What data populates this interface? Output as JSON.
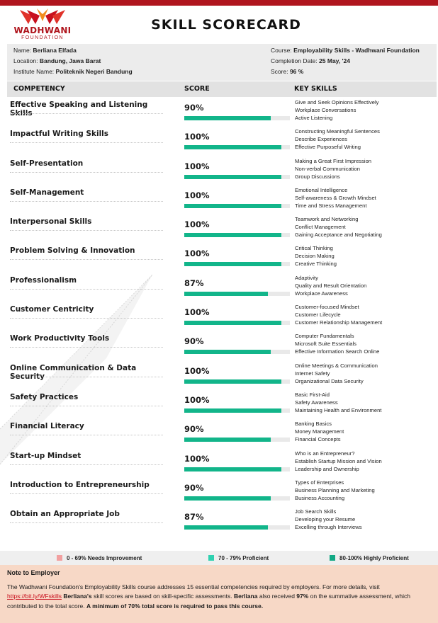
{
  "brand": {
    "name": "WADHWANI",
    "sub": "FOUNDATION",
    "color": "#b0161e"
  },
  "title": "SKILL SCORECARD",
  "info": {
    "name_label": "Name: ",
    "name": "Berliana Elfada",
    "location_label": "Location: ",
    "location": "Bandung, Jawa Barat",
    "institute_label": "Institute Name: ",
    "institute": "Politeknik Negeri Bandung",
    "course_label": "Course: ",
    "course": "Employability Skills - Wadhwani Foundation",
    "date_label": "Completion Date: ",
    "date": "25 May, '24",
    "score_label": "Score: ",
    "score": "96 %"
  },
  "table": {
    "headers": [
      "COMPETENCY",
      "SCORE",
      "KEY SKILLS"
    ],
    "bar_color": "#12b58a",
    "rows": [
      {
        "competency": "Effective Speaking and Listening Skills",
        "score": "90%",
        "value": 90,
        "skills": [
          "Give and Seek Opinions Effectively",
          "Workplace Conversations",
          "Active Listening"
        ]
      },
      {
        "competency": "Impactful Writing Skills",
        "score": "100%",
        "value": 100,
        "skills": [
          "Constructing Meaningful Sentences",
          "Describe Experiences",
          "Effective Purposeful Writing"
        ]
      },
      {
        "competency": "Self-Presentation",
        "score": "100%",
        "value": 100,
        "skills": [
          "Making a Great First Impression",
          "Non-verbal Communication",
          "Group Discussions"
        ]
      },
      {
        "competency": "Self-Management",
        "score": "100%",
        "value": 100,
        "skills": [
          "Emotional Intelligence",
          "Self-awareness & Growth Mindset",
          "Time and Stress Management"
        ]
      },
      {
        "competency": "Interpersonal Skills",
        "score": "100%",
        "value": 100,
        "skills": [
          "Teamwork and Networking",
          "Conflict Management",
          "Gaining Acceptance and Negotiating"
        ]
      },
      {
        "competency": "Problem Solving & Innovation",
        "score": "100%",
        "value": 100,
        "skills": [
          "Critical Thinking",
          "Decision Making",
          "Creative Thinking"
        ]
      },
      {
        "competency": "Professionalism",
        "score": "87%",
        "value": 87,
        "skills": [
          "Adaptivity",
          "Quality and Result Orientation",
          "Workplace Awareness"
        ]
      },
      {
        "competency": "Customer Centricity",
        "score": "100%",
        "value": 100,
        "skills": [
          "Customer-focused Mindset",
          "Customer Lifecycle",
          "Customer Relationship Management"
        ]
      },
      {
        "competency": "Work Productivity Tools",
        "score": "90%",
        "value": 90,
        "skills": [
          "Computer Fundamentals",
          "Microsoft Suite Essentials",
          "Effective Information Search Online"
        ]
      },
      {
        "competency": "Online Communication & Data Security",
        "score": "100%",
        "value": 100,
        "skills": [
          "Online Meetings & Communication",
          "Internet Safety",
          "Organizational Data Security"
        ]
      },
      {
        "competency": "Safety Practices",
        "score": "100%",
        "value": 100,
        "skills": [
          "Basic First-Aid",
          "Safety Awareness",
          "Maintaining Health and Environment"
        ]
      },
      {
        "competency": "Financial Literacy",
        "score": "90%",
        "value": 90,
        "skills": [
          "Banking Basics",
          "Money Management",
          "Financial Concepts"
        ]
      },
      {
        "competency": "Start-up Mindset",
        "score": "100%",
        "value": 100,
        "skills": [
          "Who is an Entrepreneur?",
          "Establish Startup Mission and Vision",
          "Leadership and Ownership"
        ]
      },
      {
        "competency": "Introduction to Entrepreneurship",
        "score": "90%",
        "value": 90,
        "skills": [
          "Types of Enterprises",
          "Business Planning and Marketing",
          "Business Accounting"
        ]
      },
      {
        "competency": "Obtain an Appropriate Job",
        "score": "87%",
        "value": 87,
        "skills": [
          "Job Search Skills",
          "Developing your Resume",
          "Excelling through Interviews"
        ]
      }
    ]
  },
  "legend": [
    {
      "label": "0 - 69%  Needs Improvement",
      "color": "#f2a0a0"
    },
    {
      "label": "70 - 79%  Proficient",
      "color": "#2fd1b0"
    },
    {
      "label": "80-100%  Highly Proficient",
      "color": "#12a884"
    }
  ],
  "note": {
    "heading": "Note to Employer",
    "p1": "The Wadhwani Foundation's Employability Skills course addresses 15 essential competencies required by employers. For more details, visit ",
    "link": "https://bit.ly/WFskills",
    "name1": " Berliana's",
    "p2": " skill scores are based on skill-specific assessments. ",
    "name2": "Berliana",
    "p3": " also received ",
    "pct": "97%",
    "p4": " on the summative assessment, which contributed to the total score. ",
    "bold_end": " A minimum of 70% total score is required to pass this course."
  }
}
